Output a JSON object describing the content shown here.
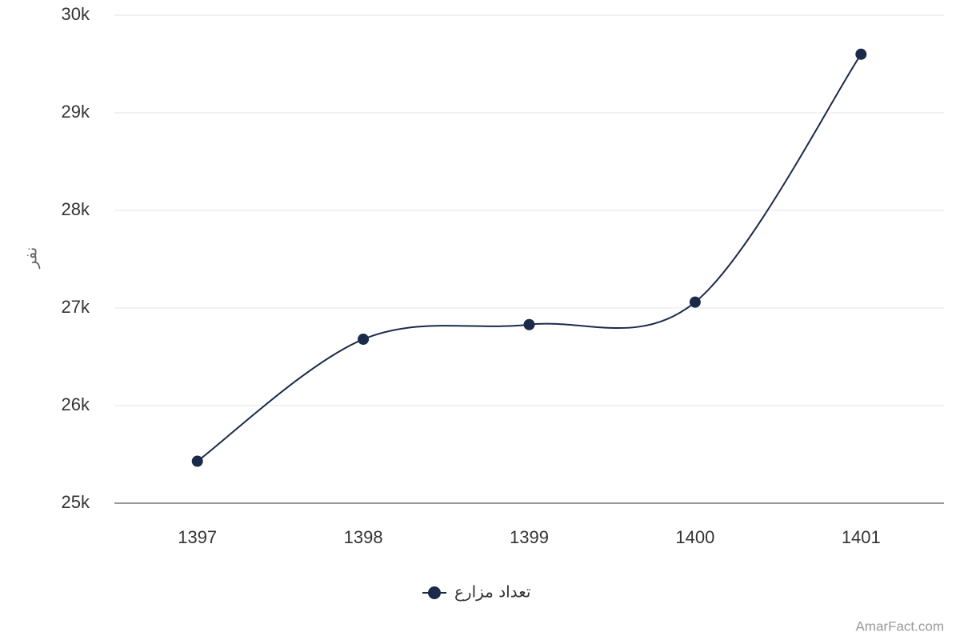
{
  "chart_data": {
    "type": "line",
    "y_label": "نفر",
    "credit": "AmarFact.com",
    "categories": [
      "1397",
      "1398",
      "1399",
      "1400",
      "1401"
    ],
    "series": [
      {
        "name": "تعداد مزارع",
        "color": "#1b2a4a",
        "values": [
          25430,
          26680,
          26830,
          27060,
          29600
        ]
      }
    ],
    "ylim": [
      25000,
      30000
    ],
    "yticks": [
      {
        "value": 25000,
        "label": "25k"
      },
      {
        "value": 26000,
        "label": "26k"
      },
      {
        "value": 27000,
        "label": "27k"
      },
      {
        "value": 28000,
        "label": "28k"
      },
      {
        "value": 29000,
        "label": "29k"
      },
      {
        "value": 30000,
        "label": "30k"
      }
    ],
    "grid": true
  }
}
